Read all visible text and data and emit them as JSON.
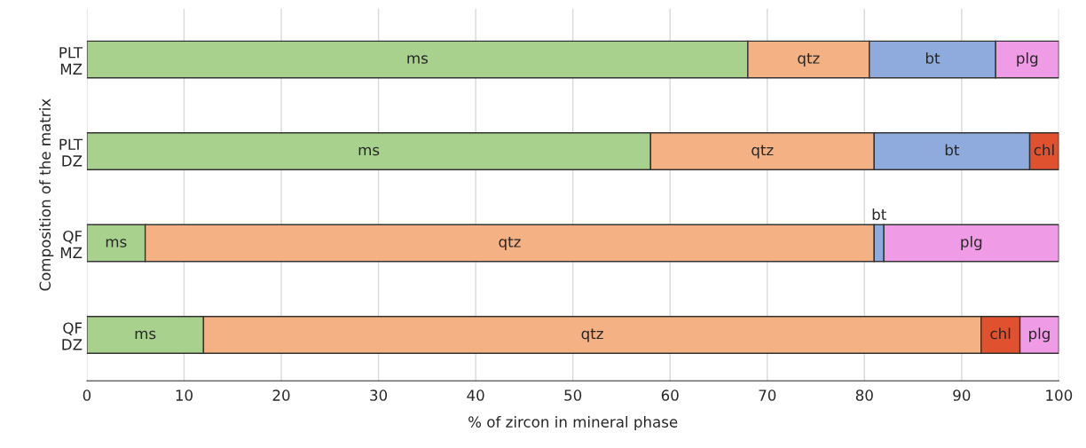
{
  "chart_data": {
    "type": "bar",
    "orientation": "horizontal",
    "stacked": true,
    "xlabel": "% of zircon in mineral phase",
    "ylabel": "Composition of the matrix",
    "categories": [
      "PLT\nMZ",
      "PLT\nDZ",
      "QF\nMZ",
      "QF\nDZ"
    ],
    "series": [
      {
        "name": "ms",
        "color": "#a9d18e",
        "values": [
          68,
          58,
          6,
          12
        ]
      },
      {
        "name": "qtz",
        "color": "#f4b183",
        "values": [
          12.5,
          23,
          75,
          80
        ]
      },
      {
        "name": "bt",
        "color": "#8faadc",
        "values": [
          13,
          16,
          1,
          null
        ]
      },
      {
        "name": "chl",
        "color": "#e0522f",
        "values": [
          null,
          3,
          null,
          4
        ]
      },
      {
        "name": "plg",
        "color": "#f09be6",
        "values": [
          6.5,
          null,
          18,
          4
        ]
      }
    ],
    "xlim": [
      0,
      100
    ],
    "xticks": [
      0,
      10,
      20,
      30,
      40,
      50,
      60,
      70,
      80,
      90,
      100
    ],
    "grid": "x",
    "legend": false
  }
}
